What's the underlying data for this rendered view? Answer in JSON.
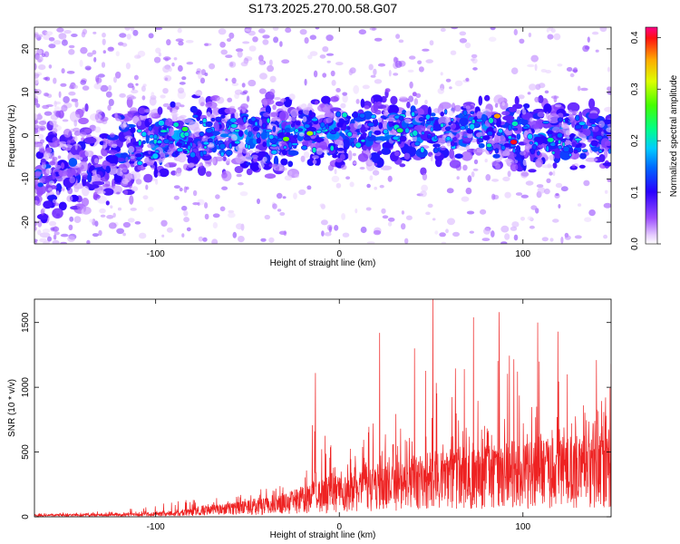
{
  "figure_title": "S173.2025.270.00.58.G07",
  "chart_data": [
    {
      "type": "heatmap",
      "title": "S173.2025.270.00.58.G07",
      "xlabel": "Height of straight line (km)",
      "ylabel": "Frequency (Hz)",
      "xlim": [
        -166,
        148
      ],
      "ylim": [
        -25,
        25
      ],
      "xticks": [
        -100,
        0,
        100
      ],
      "xtick_labels": [
        "-100",
        "0",
        "100"
      ],
      "yticks": [
        -20,
        -10,
        0,
        10,
        20
      ],
      "ytick_labels": [
        "-20",
        "-10",
        "0",
        "10",
        "20"
      ],
      "colorbar": {
        "label": "Normalized spectral amplitude",
        "range": [
          0,
          0.42
        ],
        "ticks": [
          0,
          0.1,
          0.2,
          0.3,
          0.4
        ],
        "tick_labels": [
          "0.0",
          "0.1",
          "0.2",
          "0.3",
          "0.4"
        ]
      },
      "band": {
        "description_points_x": [
          -166,
          -140,
          -110,
          -90,
          -60,
          -40,
          -20,
          0,
          20,
          40,
          60,
          80,
          100,
          120,
          148
        ],
        "center_hz": [
          -10,
          -6,
          -3,
          0,
          0,
          0,
          1,
          1,
          1,
          1,
          1,
          1,
          0,
          0,
          0
        ],
        "half_width_hz": [
          15,
          12,
          10,
          8,
          8,
          9,
          8,
          8,
          8,
          8,
          8,
          8,
          8,
          7,
          7
        ]
      },
      "peaks": [
        {
          "x": 95,
          "y": -1.5,
          "amplitude": 0.4
        },
        {
          "x": 86,
          "y": 4.5,
          "amplitude": 0.36
        },
        {
          "x": -16,
          "y": 0.5,
          "amplitude": 0.3
        },
        {
          "x": -29,
          "y": -0.8,
          "amplitude": 0.28
        },
        {
          "x": -84,
          "y": 1.5,
          "amplitude": 0.25
        },
        {
          "x": 33,
          "y": 1.2,
          "amplitude": 0.24
        },
        {
          "x": 115,
          "y": -1.0,
          "amplitude": 0.22
        }
      ]
    },
    {
      "type": "line",
      "series_name": "SNR",
      "color": "#ee2222",
      "xlabel": "Height of straight line (km)",
      "ylabel": "SNR (10 * v/v)",
      "xlim": [
        -166,
        148
      ],
      "ylim": [
        0,
        1680
      ],
      "xticks": [
        -100,
        0,
        100
      ],
      "xtick_labels": [
        "-100",
        "0",
        "100"
      ],
      "yticks": [
        0,
        500,
        1000,
        1500
      ],
      "ytick_labels": [
        "0",
        "500",
        "1000",
        "1500"
      ],
      "envelope": {
        "x": [
          -166,
          -120,
          -90,
          -70,
          -50,
          -30,
          -15,
          0,
          15,
          30,
          50,
          70,
          90,
          110,
          130,
          148
        ],
        "typical": [
          12,
          18,
          30,
          60,
          90,
          130,
          180,
          220,
          250,
          300,
          350,
          380,
          400,
          420,
          430,
          450
        ],
        "max": [
          30,
          60,
          150,
          180,
          220,
          350,
          1100,
          520,
          800,
          1400,
          1680,
          1540,
          1580,
          1500,
          1300,
          1180
        ]
      },
      "spikes": [
        {
          "x": -13,
          "y": 1110
        },
        {
          "x": 22,
          "y": 1420
        },
        {
          "x": 41,
          "y": 1300
        },
        {
          "x": 51,
          "y": 1680
        },
        {
          "x": 73,
          "y": 1540
        },
        {
          "x": 87,
          "y": 1580
        },
        {
          "x": 108,
          "y": 1500
        },
        {
          "x": 119,
          "y": 1430
        },
        {
          "x": 140,
          "y": 1210
        },
        {
          "x": 148,
          "y": 1180
        }
      ]
    }
  ]
}
